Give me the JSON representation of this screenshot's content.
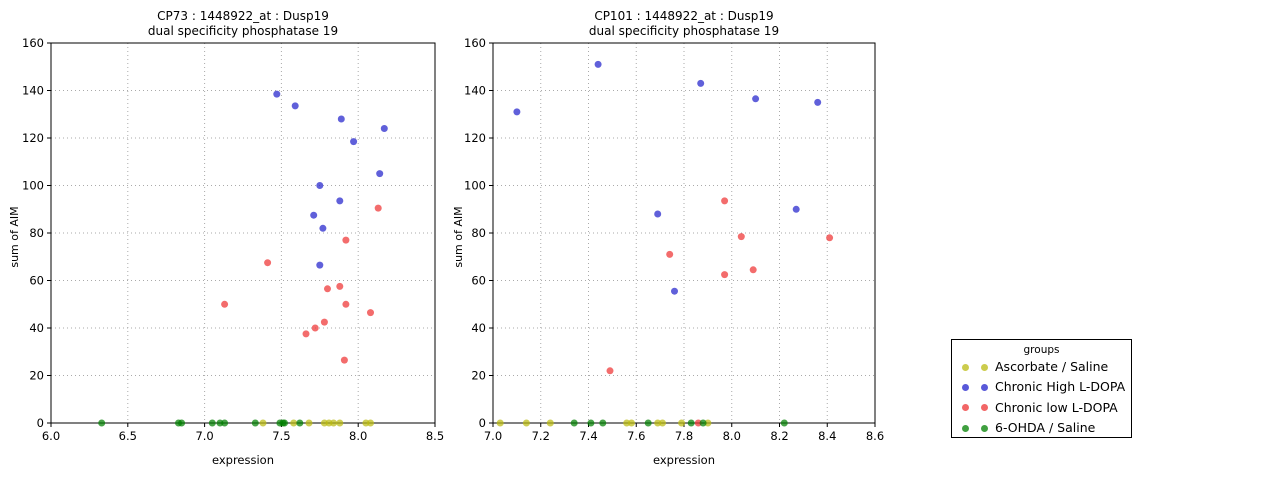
{
  "figure": {
    "background": "#ffffff"
  },
  "legend": {
    "title": "groups",
    "entries": [
      {
        "label": "Ascorbate / Saline",
        "color": "#bbbb11"
      },
      {
        "label": "Chronic High L-DOPA",
        "color": "#2222cc"
      },
      {
        "label": "Chronic low L-DOPA",
        "color": "#ee3333"
      },
      {
        "label": "6-OHDA / Saline",
        "color": "#008000"
      }
    ]
  },
  "chart_data": [
    {
      "type": "scatter",
      "title_line1": "CP73 : 1448922_at : Dusp19",
      "title_line2": "dual specificity phosphatase 19",
      "xlabel": "expression",
      "ylabel": "sum of AIM",
      "xlim": [
        6.0,
        8.5
      ],
      "ylim": [
        0,
        160
      ],
      "xticks": [
        6.0,
        6.5,
        7.0,
        7.5,
        8.0,
        8.5
      ],
      "yticks": [
        0,
        20,
        40,
        60,
        80,
        100,
        120,
        140,
        160
      ],
      "grid": true,
      "legend_position": "outside-right",
      "series": [
        {
          "name": "Ascorbate / Saline",
          "color": "#bbbb11",
          "points": [
            [
              7.38,
              0
            ],
            [
              7.58,
              0
            ],
            [
              7.68,
              0
            ],
            [
              7.78,
              0
            ],
            [
              7.81,
              0
            ],
            [
              7.84,
              0
            ],
            [
              7.88,
              0
            ],
            [
              8.05,
              0
            ],
            [
              8.08,
              0
            ]
          ]
        },
        {
          "name": "Chronic High L-DOPA",
          "color": "#2222cc",
          "points": [
            [
              7.47,
              138.5
            ],
            [
              7.59,
              133.5
            ],
            [
              7.89,
              128
            ],
            [
              8.17,
              124
            ],
            [
              7.97,
              118.5
            ],
            [
              8.14,
              105
            ],
            [
              7.75,
              100
            ],
            [
              7.88,
              93.5
            ],
            [
              7.71,
              87.5
            ],
            [
              7.77,
              82
            ],
            [
              7.75,
              66.5
            ]
          ]
        },
        {
          "name": "Chronic low L-DOPA",
          "color": "#ee3333",
          "points": [
            [
              8.13,
              90.5
            ],
            [
              7.92,
              77
            ],
            [
              7.41,
              67.5
            ],
            [
              7.88,
              57.5
            ],
            [
              7.8,
              56.5
            ],
            [
              7.92,
              50
            ],
            [
              7.13,
              50
            ],
            [
              8.08,
              46.5
            ],
            [
              7.78,
              42.5
            ],
            [
              7.72,
              40
            ],
            [
              7.66,
              37.5
            ],
            [
              7.91,
              26.5
            ]
          ]
        },
        {
          "name": "6-OHDA / Saline",
          "color": "#008000",
          "points": [
            [
              6.33,
              0
            ],
            [
              6.83,
              0
            ],
            [
              6.85,
              0
            ],
            [
              7.05,
              0
            ],
            [
              7.1,
              0
            ],
            [
              7.13,
              0
            ],
            [
              7.33,
              0
            ],
            [
              7.49,
              0
            ],
            [
              7.51,
              0
            ],
            [
              7.52,
              0
            ],
            [
              7.62,
              0
            ]
          ]
        }
      ]
    },
    {
      "type": "scatter",
      "title_line1": "CP101 : 1448922_at : Dusp19",
      "title_line2": "dual specificity phosphatase 19",
      "xlabel": "expression",
      "ylabel": "sum of AIM",
      "xlim": [
        7.0,
        8.6
      ],
      "ylim": [
        0,
        160
      ],
      "xticks": [
        7.0,
        7.2,
        7.4,
        7.6,
        7.8,
        8.0,
        8.2,
        8.4,
        8.6
      ],
      "yticks": [
        0,
        20,
        40,
        60,
        80,
        100,
        120,
        140,
        160
      ],
      "grid": true,
      "legend_position": "outside-right",
      "series": [
        {
          "name": "Ascorbate / Saline",
          "color": "#bbbb11",
          "points": [
            [
              7.03,
              0
            ],
            [
              7.14,
              0
            ],
            [
              7.24,
              0
            ],
            [
              7.56,
              0
            ],
            [
              7.58,
              0
            ],
            [
              7.69,
              0
            ],
            [
              7.71,
              0
            ],
            [
              7.79,
              0
            ],
            [
              7.9,
              0
            ]
          ]
        },
        {
          "name": "Chronic High L-DOPA",
          "color": "#2222cc",
          "points": [
            [
              7.44,
              151
            ],
            [
              7.87,
              143
            ],
            [
              8.1,
              136.5
            ],
            [
              8.36,
              135
            ],
            [
              7.1,
              131
            ],
            [
              8.27,
              90
            ],
            [
              7.69,
              88
            ],
            [
              7.76,
              55.5
            ]
          ]
        },
        {
          "name": "Chronic low L-DOPA",
          "color": "#ee3333",
          "points": [
            [
              7.97,
              93.5
            ],
            [
              8.04,
              78.5
            ],
            [
              8.41,
              78
            ],
            [
              7.74,
              71
            ],
            [
              8.09,
              64.5
            ],
            [
              7.97,
              62.5
            ],
            [
              7.49,
              22
            ],
            [
              7.86,
              0
            ]
          ]
        },
        {
          "name": "6-OHDA / Saline",
          "color": "#008000",
          "points": [
            [
              7.34,
              0
            ],
            [
              7.41,
              0
            ],
            [
              7.46,
              0
            ],
            [
              7.65,
              0
            ],
            [
              7.83,
              0
            ],
            [
              7.88,
              0
            ],
            [
              8.22,
              0
            ]
          ]
        }
      ]
    }
  ]
}
